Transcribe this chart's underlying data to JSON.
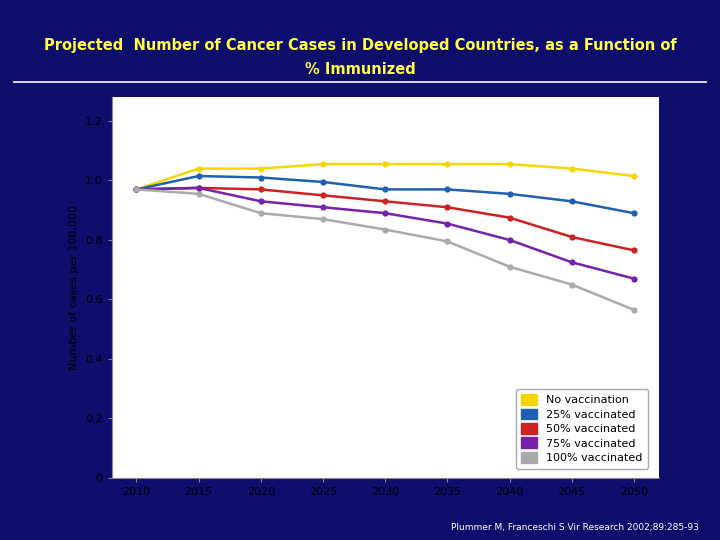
{
  "title_line1": "Projected  Number of Cancer Cases in Developed Countries, as a Function of",
  "title_line2": "% Immunized",
  "ylabel": "Number of cases per 100,000",
  "citation": "Plummer M, Franceschi S Vir Research 2002;89:285-93",
  "bg_outer": "#0d0d6b",
  "bg_plot": "#ffffff",
  "title_color": "#ffff44",
  "xlabel_ticks": [
    2010,
    2015,
    2020,
    2025,
    2030,
    2035,
    2040,
    2045,
    2050
  ],
  "yticks": [
    0,
    0.2,
    0.4,
    0.6,
    0.8,
    1.0,
    1.2
  ],
  "series": [
    {
      "label": "No vaccination",
      "color": "#f5d800",
      "data": [
        [
          2010,
          0.97
        ],
        [
          2015,
          1.04
        ],
        [
          2020,
          1.04
        ],
        [
          2025,
          1.055
        ],
        [
          2030,
          1.055
        ],
        [
          2035,
          1.055
        ],
        [
          2040,
          1.055
        ],
        [
          2045,
          1.04
        ],
        [
          2050,
          1.015
        ]
      ]
    },
    {
      "label": "25% vaccinated",
      "color": "#2060b0",
      "data": [
        [
          2010,
          0.97
        ],
        [
          2015,
          1.015
        ],
        [
          2020,
          1.01
        ],
        [
          2025,
          0.995
        ],
        [
          2030,
          0.97
        ],
        [
          2035,
          0.97
        ],
        [
          2040,
          0.955
        ],
        [
          2045,
          0.93
        ],
        [
          2050,
          0.89
        ]
      ]
    },
    {
      "label": "50% vaccinated",
      "color": "#cc2222",
      "data": [
        [
          2010,
          0.97
        ],
        [
          2015,
          0.975
        ],
        [
          2020,
          0.97
        ],
        [
          2025,
          0.95
        ],
        [
          2030,
          0.93
        ],
        [
          2035,
          0.91
        ],
        [
          2040,
          0.875
        ],
        [
          2045,
          0.81
        ],
        [
          2050,
          0.765
        ]
      ]
    },
    {
      "label": "75% vaccinated",
      "color": "#7722aa",
      "data": [
        [
          2010,
          0.97
        ],
        [
          2015,
          0.975
        ],
        [
          2020,
          0.93
        ],
        [
          2025,
          0.91
        ],
        [
          2030,
          0.89
        ],
        [
          2035,
          0.855
        ],
        [
          2040,
          0.8
        ],
        [
          2045,
          0.725
        ],
        [
          2050,
          0.67
        ]
      ]
    },
    {
      "label": "100% vaccinated",
      "color": "#aaaaaa",
      "data": [
        [
          2010,
          0.97
        ],
        [
          2015,
          0.955
        ],
        [
          2020,
          0.89
        ],
        [
          2025,
          0.87
        ],
        [
          2030,
          0.835
        ],
        [
          2035,
          0.795
        ],
        [
          2040,
          0.71
        ],
        [
          2045,
          0.65
        ],
        [
          2050,
          0.565
        ]
      ]
    }
  ]
}
